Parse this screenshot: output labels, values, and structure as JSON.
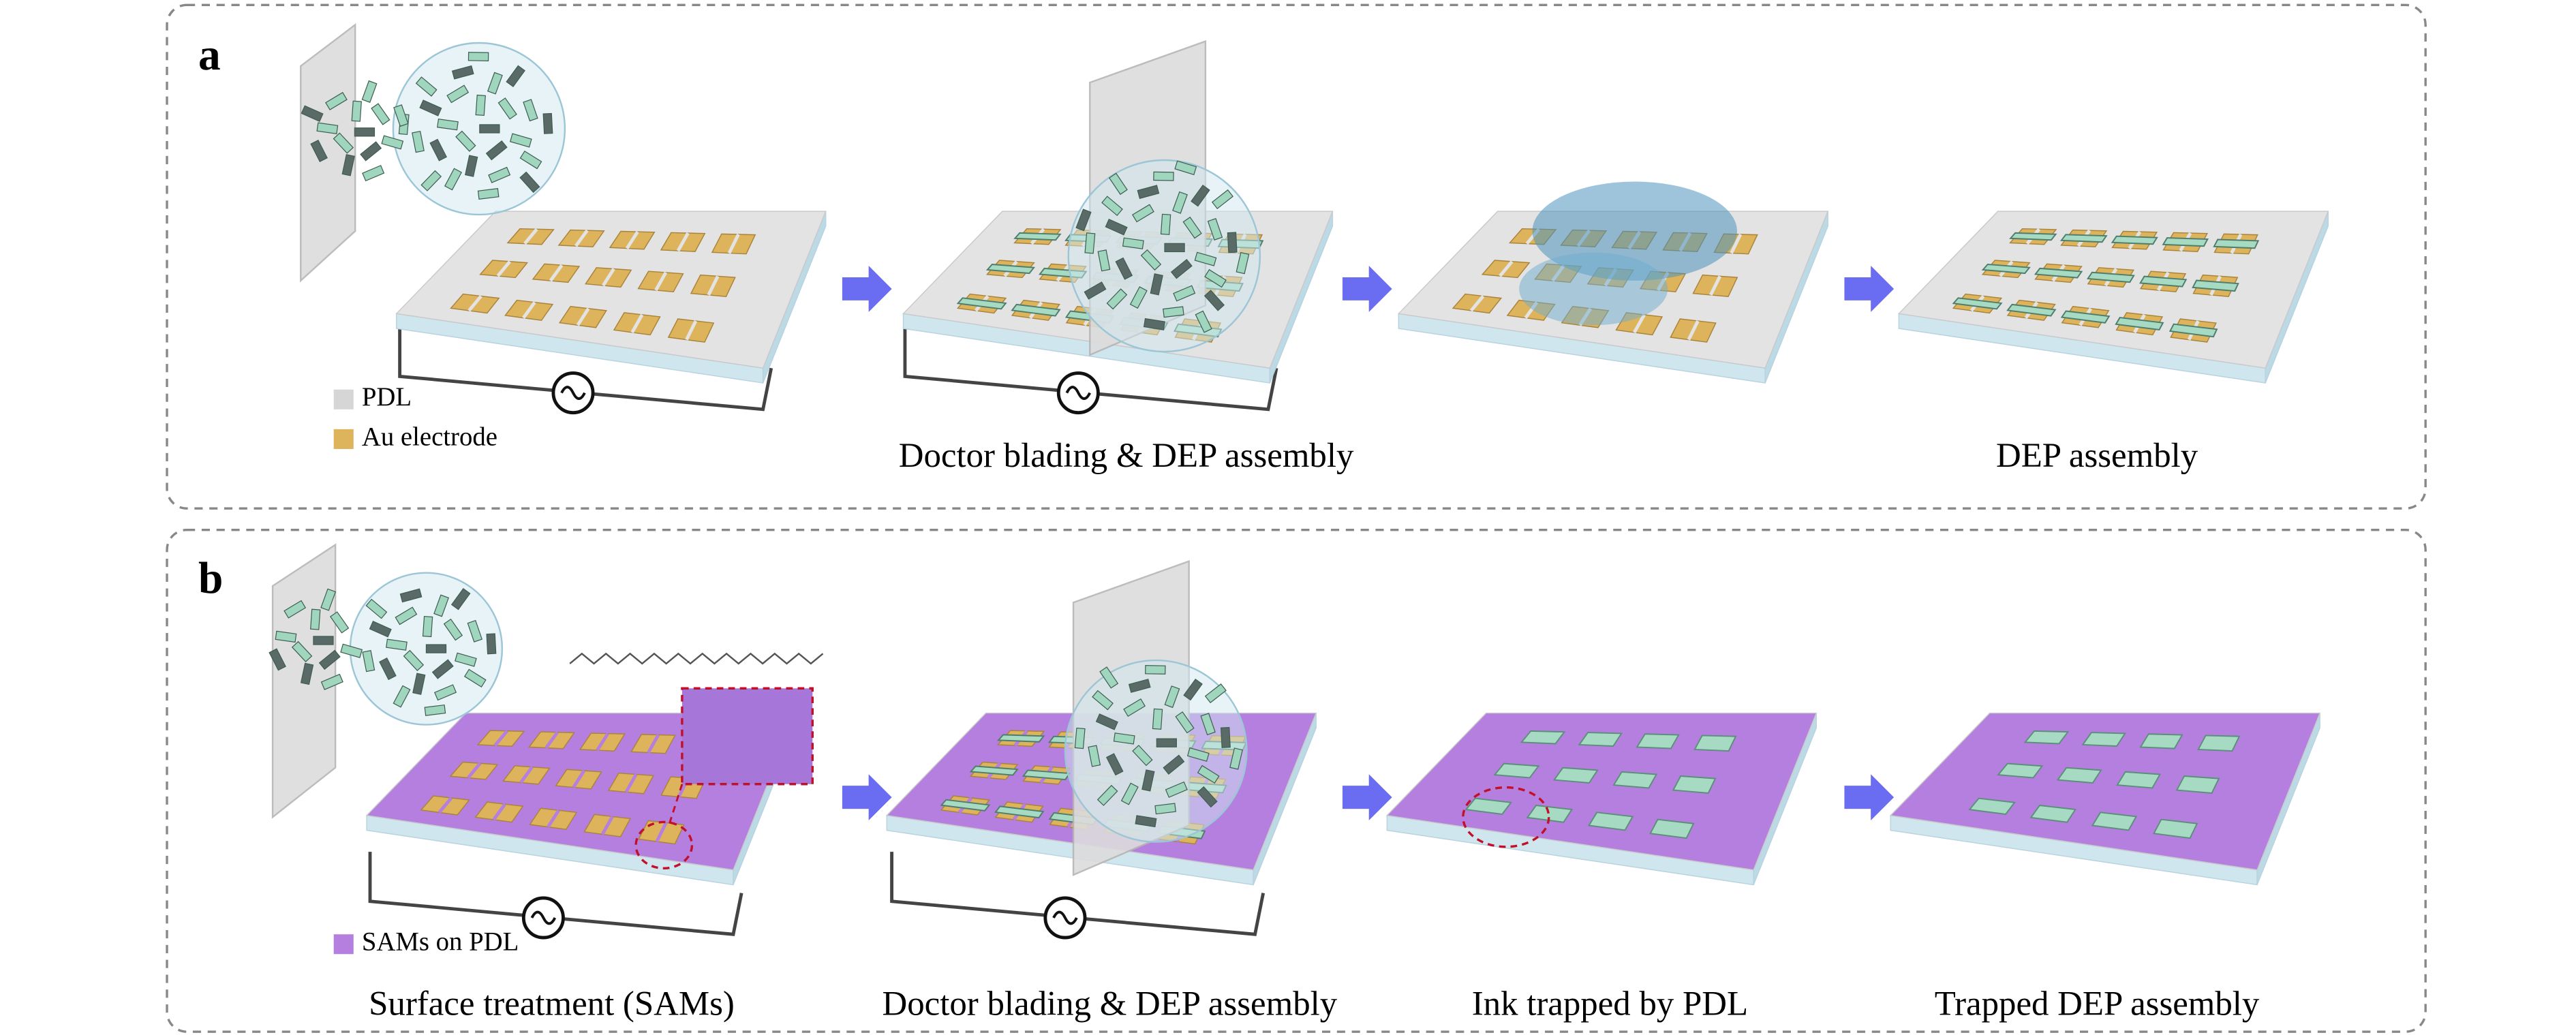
{
  "panels": [
    {
      "label": "a",
      "legend": [
        {
          "label": "PDL",
          "color": "#d6d6d6"
        },
        {
          "label": "Au electrode",
          "color": "#ddb35c"
        }
      ],
      "plate_color": "#e3e3e3",
      "captions": [
        "Doctor blading & DEP assembly",
        "DEP assembly"
      ]
    },
    {
      "label": "b",
      "legend": [
        {
          "label": "SAMs on PDL",
          "color": "#b57fe0"
        }
      ],
      "plate_color": "#b57fe0",
      "captions": [
        "Surface treatment (SAMs)",
        "Doctor blading & DEP assembly",
        "Ink trapped by PDL",
        "Trapped DEP assembly"
      ]
    }
  ]
}
